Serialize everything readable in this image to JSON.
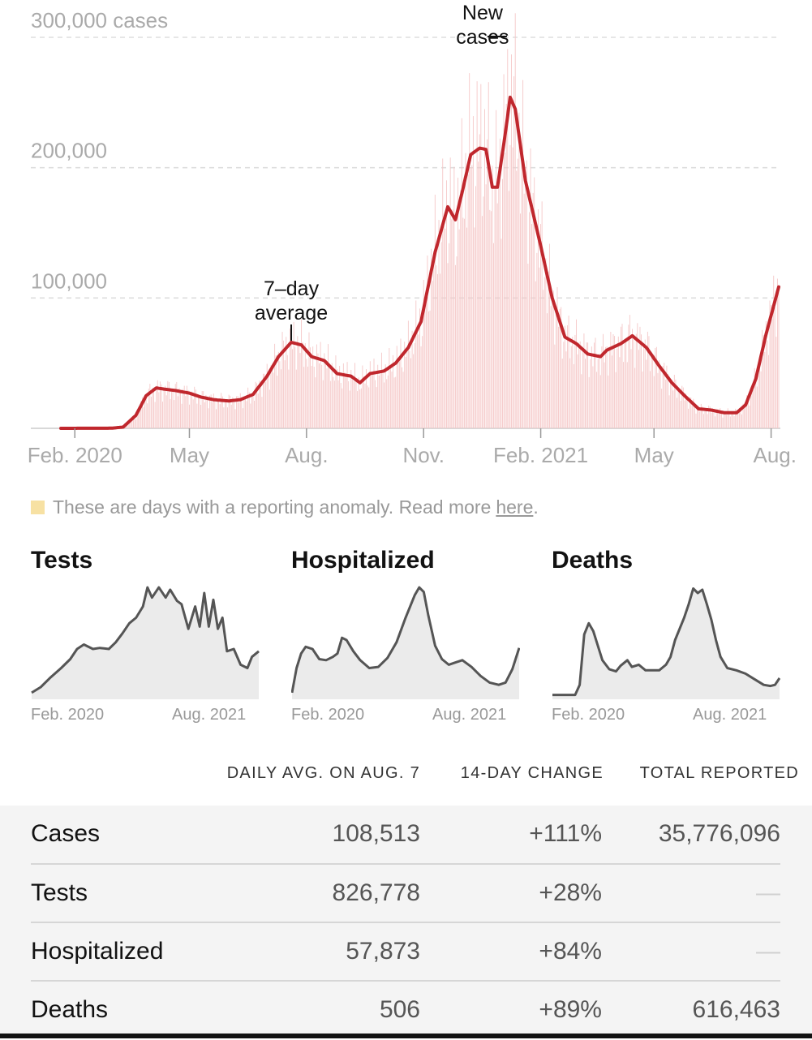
{
  "colors": {
    "average_line": "#c0272d",
    "daily_bars": "#f5c8c8",
    "anomaly": "#f7e1a3",
    "mini_line": "#555555",
    "mini_fill": "#ebebeb"
  },
  "chart_data": {
    "type": "area",
    "title": "",
    "y_unit_label": "cases",
    "y_ticks": [
      {
        "value": 100000,
        "label": "100,000"
      },
      {
        "value": 200000,
        "label": "200,000"
      },
      {
        "value": 300000,
        "label": "300,000 cases"
      }
    ],
    "x_ticks": [
      {
        "date": "2020-02-01",
        "label": "Feb. 2020"
      },
      {
        "date": "2020-05-01",
        "label": "May"
      },
      {
        "date": "2020-08-01",
        "label": "Aug."
      },
      {
        "date": "2020-11-01",
        "label": "Nov."
      },
      {
        "date": "2021-02-01",
        "label": "Feb. 2021"
      },
      {
        "date": "2021-05-01",
        "label": "May"
      },
      {
        "date": "2021-08-01",
        "label": "Aug."
      }
    ],
    "x_range": [
      "2020-01-21",
      "2021-08-07"
    ],
    "ylim": [
      0,
      300000
    ],
    "grid": true,
    "annotations": [
      {
        "text_lines": [
          "7–day",
          "average"
        ],
        "date": "2020-07-20",
        "value": 66000
      },
      {
        "text_lines": [
          "New",
          "cases"
        ],
        "date": "2021-01-08",
        "value": 300000
      }
    ],
    "series": [
      {
        "name": "7-day average",
        "points": [
          [
            "2020-01-21",
            0
          ],
          [
            "2020-03-01",
            100
          ],
          [
            "2020-03-10",
            1000
          ],
          [
            "2020-03-20",
            10000
          ],
          [
            "2020-03-28",
            25000
          ],
          [
            "2020-04-05",
            31000
          ],
          [
            "2020-04-12",
            30000
          ],
          [
            "2020-04-20",
            29000
          ],
          [
            "2020-05-01",
            27000
          ],
          [
            "2020-05-10",
            24000
          ],
          [
            "2020-05-20",
            22000
          ],
          [
            "2020-06-01",
            21000
          ],
          [
            "2020-06-10",
            22000
          ],
          [
            "2020-06-20",
            26000
          ],
          [
            "2020-07-01",
            40000
          ],
          [
            "2020-07-10",
            55000
          ],
          [
            "2020-07-20",
            66000
          ],
          [
            "2020-07-28",
            64000
          ],
          [
            "2020-08-05",
            55000
          ],
          [
            "2020-08-15",
            52000
          ],
          [
            "2020-08-25",
            42000
          ],
          [
            "2020-09-05",
            40000
          ],
          [
            "2020-09-12",
            35000
          ],
          [
            "2020-09-20",
            42000
          ],
          [
            "2020-10-01",
            44000
          ],
          [
            "2020-10-10",
            50000
          ],
          [
            "2020-10-20",
            62000
          ],
          [
            "2020-10-30",
            82000
          ],
          [
            "2020-11-10",
            135000
          ],
          [
            "2020-11-20",
            170000
          ],
          [
            "2020-11-26",
            160000
          ],
          [
            "2020-12-01",
            180000
          ],
          [
            "2020-12-08",
            210000
          ],
          [
            "2020-12-15",
            215000
          ],
          [
            "2020-12-20",
            214000
          ],
          [
            "2020-12-25",
            185000
          ],
          [
            "2020-12-29",
            185000
          ],
          [
            "2021-01-04",
            225000
          ],
          [
            "2021-01-08",
            254000
          ],
          [
            "2021-01-12",
            245000
          ],
          [
            "2021-01-20",
            190000
          ],
          [
            "2021-02-01",
            140000
          ],
          [
            "2021-02-10",
            100000
          ],
          [
            "2021-02-20",
            70000
          ],
          [
            "2021-03-01",
            65000
          ],
          [
            "2021-03-10",
            57000
          ],
          [
            "2021-03-20",
            55000
          ],
          [
            "2021-03-25",
            60000
          ],
          [
            "2021-04-05",
            65000
          ],
          [
            "2021-04-14",
            71000
          ],
          [
            "2021-04-25",
            62000
          ],
          [
            "2021-05-05",
            48000
          ],
          [
            "2021-05-15",
            35000
          ],
          [
            "2021-05-25",
            25000
          ],
          [
            "2021-06-05",
            15000
          ],
          [
            "2021-06-15",
            14000
          ],
          [
            "2021-06-25",
            12000
          ],
          [
            "2021-07-05",
            12000
          ],
          [
            "2021-07-12",
            18000
          ],
          [
            "2021-07-20",
            38000
          ],
          [
            "2021-07-28",
            72000
          ],
          [
            "2021-08-07",
            108513
          ]
        ]
      }
    ]
  },
  "legend": {
    "text": "These are days with a reporting anomaly. Read more",
    "link": "here",
    "suffix": "."
  },
  "mini_charts": [
    {
      "title": "Tests",
      "start_label": "Feb. 2020",
      "end_label": "Aug. 2021",
      "ylim": [
        0,
        1
      ],
      "points": [
        [
          0,
          0.03
        ],
        [
          0.04,
          0.08
        ],
        [
          0.08,
          0.16
        ],
        [
          0.13,
          0.25
        ],
        [
          0.17,
          0.33
        ],
        [
          0.2,
          0.42
        ],
        [
          0.23,
          0.46
        ],
        [
          0.27,
          0.42
        ],
        [
          0.3,
          0.43
        ],
        [
          0.34,
          0.42
        ],
        [
          0.37,
          0.48
        ],
        [
          0.4,
          0.56
        ],
        [
          0.43,
          0.65
        ],
        [
          0.46,
          0.7
        ],
        [
          0.49,
          0.8
        ],
        [
          0.51,
          0.97
        ],
        [
          0.53,
          0.88
        ],
        [
          0.56,
          0.97
        ],
        [
          0.59,
          0.88
        ],
        [
          0.61,
          0.95
        ],
        [
          0.64,
          0.85
        ],
        [
          0.66,
          0.82
        ],
        [
          0.69,
          0.6
        ],
        [
          0.72,
          0.8
        ],
        [
          0.74,
          0.62
        ],
        [
          0.76,
          0.92
        ],
        [
          0.78,
          0.62
        ],
        [
          0.8,
          0.86
        ],
        [
          0.82,
          0.6
        ],
        [
          0.84,
          0.7
        ],
        [
          0.86,
          0.4
        ],
        [
          0.89,
          0.42
        ],
        [
          0.92,
          0.28
        ],
        [
          0.95,
          0.25
        ],
        [
          0.97,
          0.35
        ],
        [
          1,
          0.4
        ]
      ]
    },
    {
      "title": "Hospitalized",
      "start_label": "Feb. 2020",
      "end_label": "Aug. 2021",
      "ylim": [
        0,
        1
      ],
      "points": [
        [
          0,
          0.03
        ],
        [
          0.02,
          0.25
        ],
        [
          0.04,
          0.38
        ],
        [
          0.06,
          0.44
        ],
        [
          0.09,
          0.42
        ],
        [
          0.12,
          0.33
        ],
        [
          0.15,
          0.32
        ],
        [
          0.18,
          0.35
        ],
        [
          0.2,
          0.38
        ],
        [
          0.22,
          0.52
        ],
        [
          0.24,
          0.5
        ],
        [
          0.27,
          0.4
        ],
        [
          0.3,
          0.32
        ],
        [
          0.34,
          0.25
        ],
        [
          0.38,
          0.26
        ],
        [
          0.42,
          0.34
        ],
        [
          0.46,
          0.48
        ],
        [
          0.5,
          0.7
        ],
        [
          0.54,
          0.9
        ],
        [
          0.56,
          0.97
        ],
        [
          0.58,
          0.93
        ],
        [
          0.6,
          0.72
        ],
        [
          0.63,
          0.45
        ],
        [
          0.66,
          0.33
        ],
        [
          0.69,
          0.28
        ],
        [
          0.72,
          0.3
        ],
        [
          0.75,
          0.32
        ],
        [
          0.79,
          0.26
        ],
        [
          0.83,
          0.18
        ],
        [
          0.87,
          0.12
        ],
        [
          0.91,
          0.1
        ],
        [
          0.94,
          0.12
        ],
        [
          0.97,
          0.24
        ],
        [
          1,
          0.43
        ]
      ]
    },
    {
      "title": "Deaths",
      "start_label": "Feb. 2020",
      "end_label": "Aug. 2021",
      "ylim": [
        0,
        1
      ],
      "points": [
        [
          0,
          0.01
        ],
        [
          0.1,
          0.01
        ],
        [
          0.12,
          0.1
        ],
        [
          0.14,
          0.55
        ],
        [
          0.16,
          0.65
        ],
        [
          0.18,
          0.58
        ],
        [
          0.2,
          0.45
        ],
        [
          0.22,
          0.32
        ],
        [
          0.25,
          0.24
        ],
        [
          0.28,
          0.22
        ],
        [
          0.3,
          0.27
        ],
        [
          0.33,
          0.32
        ],
        [
          0.35,
          0.26
        ],
        [
          0.38,
          0.28
        ],
        [
          0.41,
          0.23
        ],
        [
          0.44,
          0.23
        ],
        [
          0.47,
          0.23
        ],
        [
          0.5,
          0.28
        ],
        [
          0.52,
          0.35
        ],
        [
          0.54,
          0.5
        ],
        [
          0.56,
          0.6
        ],
        [
          0.58,
          0.7
        ],
        [
          0.6,
          0.82
        ],
        [
          0.62,
          0.96
        ],
        [
          0.64,
          0.92
        ],
        [
          0.66,
          0.95
        ],
        [
          0.68,
          0.82
        ],
        [
          0.7,
          0.68
        ],
        [
          0.72,
          0.5
        ],
        [
          0.74,
          0.35
        ],
        [
          0.77,
          0.25
        ],
        [
          0.81,
          0.23
        ],
        [
          0.85,
          0.2
        ],
        [
          0.89,
          0.15
        ],
        [
          0.93,
          0.1
        ],
        [
          0.96,
          0.09
        ],
        [
          0.98,
          0.1
        ],
        [
          1,
          0.16
        ]
      ]
    }
  ],
  "table": {
    "headers": [
      "DAILY AVG. ON AUG. 7",
      "14-DAY CHANGE",
      "TOTAL REPORTED"
    ],
    "rows": [
      {
        "name": "Cases",
        "daily": "108,513",
        "change": "+111%",
        "total": "35,776,096"
      },
      {
        "name": "Tests",
        "daily": "826,778",
        "change": "+28%",
        "total": "—"
      },
      {
        "name": "Hospitalized",
        "daily": "57,873",
        "change": "+84%",
        "total": "—"
      },
      {
        "name": "Deaths",
        "daily": "506",
        "change": "+89%",
        "total": "616,463"
      }
    ]
  }
}
